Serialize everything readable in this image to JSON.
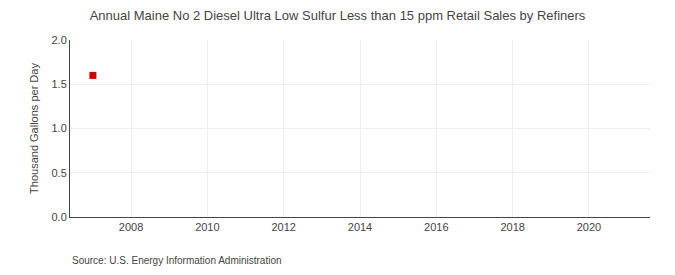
{
  "chart_data": {
    "type": "scatter",
    "title": "Annual Maine No 2 Diesel Ultra Low Sulfur Less than 15 ppm Retail Sales by Refiners",
    "ylabel": "Thousand Gallons per Day",
    "annotations": [
      "Source: U.S. Energy Information Administration"
    ],
    "x": [
      2007
    ],
    "values": [
      1.6
    ],
    "color": "#cc0000",
    "marker": "square",
    "xlim": [
      2006.4,
      2021.6
    ],
    "xticks": [
      2008,
      2010,
      2012,
      2014,
      2016,
      2018,
      2020
    ],
    "ylim": [
      0.0,
      2.0
    ],
    "yticks": [
      {
        "value": 0.0,
        "label": "0.0"
      },
      0.5,
      {
        "value": 1.0,
        "label": "1.0"
      },
      1.5,
      {
        "value": 2.0,
        "label": "2.0"
      }
    ],
    "grid": true
  }
}
